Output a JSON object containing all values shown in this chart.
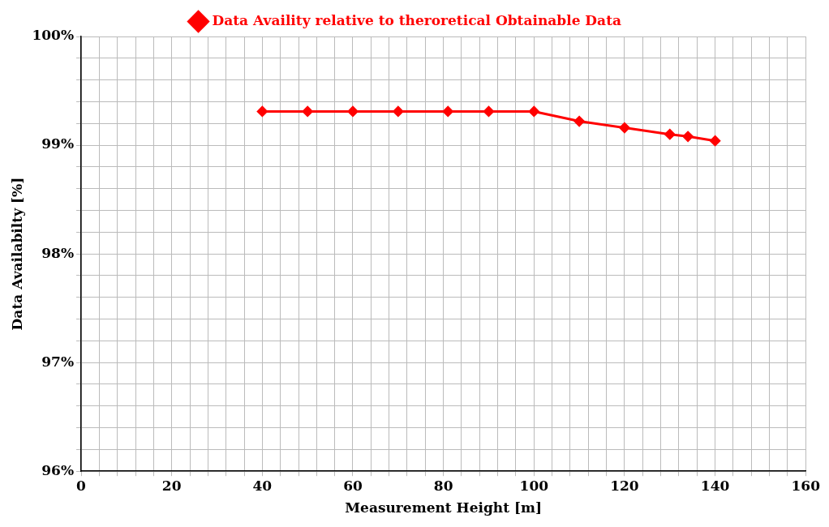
{
  "chart_data": {
    "type": "line",
    "xlabel": "Measurement Height [m]",
    "ylabel": "Data Availabilty [%]",
    "x": [
      40,
      50,
      60,
      70,
      81,
      90,
      100,
      110,
      120,
      130,
      134,
      140
    ],
    "series": [
      {
        "name": "Data Availity relative to theroretical Obtainable Data",
        "color": "#ff0000",
        "values": [
          99.31,
          99.31,
          99.31,
          99.31,
          99.31,
          99.31,
          99.31,
          99.22,
          99.16,
          99.1,
          99.08,
          99.04
        ]
      }
    ],
    "xlim": [
      0,
      160
    ],
    "xticks": [
      0,
      {
        "value": 4,
        "label": null
      },
      {
        "value": 8,
        "label": null
      },
      {
        "value": 12,
        "label": null
      },
      {
        "value": 16,
        "label": null
      },
      20,
      {
        "value": 24,
        "label": null
      },
      {
        "value": 28,
        "label": null
      },
      {
        "value": 32,
        "label": null
      },
      {
        "value": 36,
        "label": null
      },
      40,
      {
        "value": 44,
        "label": null
      },
      {
        "value": 48,
        "label": null
      },
      {
        "value": 52,
        "label": null
      },
      {
        "value": 56,
        "label": null
      },
      60,
      {
        "value": 64,
        "label": null
      },
      {
        "value": 68,
        "label": null
      },
      {
        "value": 72,
        "label": null
      },
      {
        "value": 76,
        "label": null
      },
      80,
      {
        "value": 84,
        "label": null
      },
      {
        "value": 88,
        "label": null
      },
      {
        "value": 92,
        "label": null
      },
      {
        "value": 96,
        "label": null
      },
      100,
      {
        "value": 104,
        "label": null
      },
      {
        "value": 108,
        "label": null
      },
      {
        "value": 112,
        "label": null
      },
      {
        "value": 116,
        "label": null
      },
      120,
      {
        "value": 124,
        "label": null
      },
      {
        "value": 128,
        "label": null
      },
      {
        "value": 132,
        "label": null
      },
      {
        "value": 136,
        "label": null
      },
      140,
      {
        "value": 144,
        "label": null
      },
      {
        "value": 148,
        "label": null
      },
      {
        "value": 152,
        "label": null
      },
      {
        "value": 156,
        "label": null
      },
      160
    ],
    "ylim": [
      96,
      100
    ],
    "yticks": [
      {
        "value": 96,
        "label": "96%"
      },
      {
        "value": 96.2,
        "label": null
      },
      {
        "value": 96.4,
        "label": null
      },
      {
        "value": 96.6,
        "label": null
      },
      {
        "value": 96.8,
        "label": null
      },
      {
        "value": 97,
        "label": "97%"
      },
      {
        "value": 97.2,
        "label": null
      },
      {
        "value": 97.4,
        "label": null
      },
      {
        "value": 97.6,
        "label": null
      },
      {
        "value": 97.8,
        "label": null
      },
      {
        "value": 98,
        "label": "98%"
      },
      {
        "value": 98.2,
        "label": null
      },
      {
        "value": 98.4,
        "label": null
      },
      {
        "value": 98.6,
        "label": null
      },
      {
        "value": 98.8,
        "label": null
      },
      {
        "value": 99,
        "label": "99%"
      },
      {
        "value": 99.2,
        "label": null
      },
      {
        "value": 99.4,
        "label": null
      },
      {
        "value": 99.6,
        "label": null
      },
      {
        "value": 99.8,
        "label": null
      },
      {
        "value": 100,
        "label": "100%"
      }
    ],
    "grid": true,
    "legend": "top",
    "marker": "diamond",
    "line_style": "solid"
  }
}
